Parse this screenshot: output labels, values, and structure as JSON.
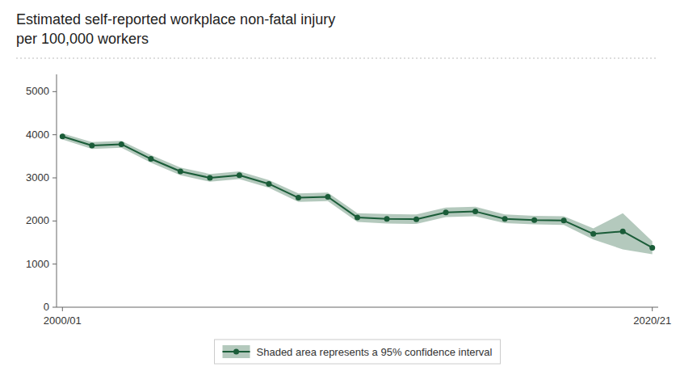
{
  "chart_data": {
    "type": "line",
    "title": "Estimated self-reported workplace non-fatal injury\nper 100,000 workers",
    "x": [
      0,
      1,
      2,
      3,
      4,
      5,
      6,
      7,
      8,
      9,
      10,
      11,
      12,
      13,
      14,
      15,
      16,
      17,
      18,
      19,
      20
    ],
    "series": [
      {
        "name": "Shaded area represents a 95% confidence interval",
        "color": "#1a5c38",
        "marker": "circle",
        "values": [
          3960,
          3750,
          3780,
          3440,
          3150,
          3000,
          3060,
          2860,
          2540,
          2560,
          2080,
          2050,
          2040,
          2200,
          2220,
          2050,
          2020,
          2010,
          1700,
          1760,
          1380
        ],
        "ci_upper": [
          4030,
          3830,
          3860,
          3530,
          3240,
          3090,
          3150,
          2950,
          2640,
          2660,
          2180,
          2160,
          2150,
          2310,
          2330,
          2150,
          2120,
          2110,
          1830,
          2180,
          1530
        ],
        "ci_lower": [
          3890,
          3670,
          3700,
          3350,
          3060,
          2910,
          2970,
          2770,
          2440,
          2460,
          1980,
          1940,
          1930,
          2090,
          2110,
          1950,
          1920,
          1910,
          1570,
          1340,
          1230
        ]
      }
    ],
    "xlim": [
      -0.2,
      20.2
    ],
    "xticks": [
      {
        "value": 0,
        "label": "2000/01"
      },
      {
        "value": 20,
        "label": "2020/21"
      }
    ],
    "ylim": [
      0,
      5400
    ],
    "yticks": [
      0,
      1000,
      2000,
      3000,
      4000,
      5000
    ],
    "grid": false,
    "legend": "bottom"
  }
}
